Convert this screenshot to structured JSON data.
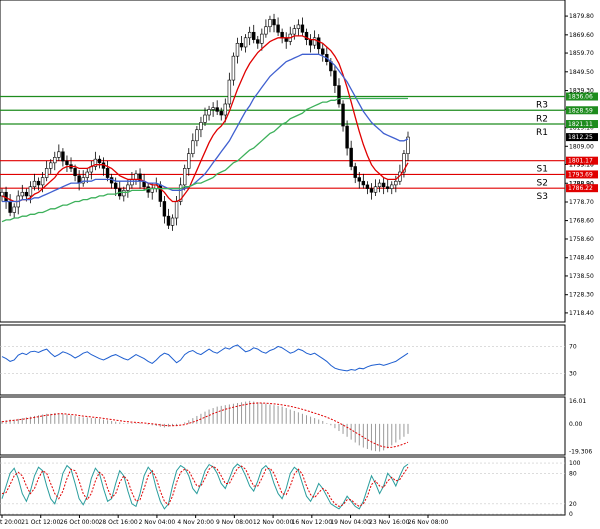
{
  "chart_data": [
    {
      "type": "candlestick",
      "panel": "price",
      "ylim": [
        1714.0,
        1888.0
      ],
      "y_ticks": [
        "1879.80",
        "1869.60",
        "1859.70",
        "1849.50",
        "1839.30",
        "1829.20",
        "1819.10",
        "1809.00",
        "1799.10",
        "1788.90",
        "1778.70",
        "1768.60",
        "1758.60",
        "1748.40",
        "1738.50",
        "1728.30",
        "1718.40"
      ],
      "x_ticks": [
        "20 Oct 20:00",
        "21 Oct 12:00",
        "26 Oct 00:00",
        "28 Oct 16:00",
        "2 Nov 04:00",
        "4 Nov 20:00",
        "9 Nov 08:00",
        "12 Nov 00:00",
        "16 Nov 12:00",
        "19 Nov 04:00",
        "23 Nov 16:00",
        "26 Nov 08:00"
      ],
      "close_series": [
        1784,
        1779,
        1773,
        1776,
        1782,
        1784,
        1782,
        1787,
        1790,
        1788,
        1792,
        1797,
        1800,
        1803,
        1806,
        1801,
        1799,
        1797,
        1793,
        1789,
        1792,
        1795,
        1798,
        1802,
        1800,
        1797,
        1792,
        1789,
        1786,
        1782,
        1785,
        1788,
        1791,
        1794,
        1790,
        1787,
        1784,
        1786,
        1788,
        1779,
        1771,
        1766,
        1770,
        1779,
        1788,
        1797,
        1805,
        1812,
        1818,
        1822,
        1826,
        1829,
        1830,
        1828,
        1826,
        1832,
        1845,
        1858,
        1865,
        1863,
        1868,
        1871,
        1867,
        1865,
        1870,
        1874,
        1878,
        1875,
        1871,
        1868,
        1866,
        1870,
        1873,
        1875,
        1871,
        1867,
        1864,
        1868,
        1862,
        1859,
        1855,
        1850,
        1842,
        1832,
        1820,
        1808,
        1798,
        1792,
        1790,
        1788,
        1786,
        1784,
        1787,
        1789,
        1787,
        1786,
        1788,
        1790,
        1795,
        1805,
        1814
      ],
      "series": [
        {
          "name": "",
          "color": "#e00000",
          "values": [
            1782,
            1781,
            1780,
            1779,
            1779,
            1780,
            1780,
            1781,
            1783,
            1784,
            1786,
            1788,
            1790,
            1792,
            1795,
            1797,
            1798,
            1798,
            1798,
            1797,
            1797,
            1797,
            1798,
            1799,
            1799,
            1799,
            1798,
            1797,
            1795,
            1793,
            1792,
            1791,
            1791,
            1791,
            1791,
            1790,
            1789,
            1788,
            1788,
            1786,
            1784,
            1781,
            1779,
            1779,
            1780,
            1783,
            1786,
            1791,
            1796,
            1801,
            1806,
            1811,
            1815,
            1818,
            1820,
            1823,
            1828,
            1834,
            1840,
            1845,
            1850,
            1854,
            1857,
            1860,
            1862,
            1864,
            1866,
            1867,
            1868,
            1868,
            1868,
            1868,
            1869,
            1869,
            1869,
            1868,
            1867,
            1867,
            1866,
            1865,
            1863,
            1861,
            1858,
            1854,
            1848,
            1841,
            1833,
            1825,
            1817,
            1810,
            1804,
            1799,
            1796,
            1794,
            1792,
            1791,
            1791,
            1791,
            1793,
            1796,
            1800
          ]
        },
        {
          "name": "",
          "color": "#4060d0",
          "values": [
            1779,
            1779,
            1779,
            1779,
            1779,
            1780,
            1780,
            1780,
            1781,
            1781,
            1782,
            1783,
            1784,
            1785,
            1786,
            1787,
            1788,
            1789,
            1789,
            1789,
            1790,
            1790,
            1790,
            1791,
            1791,
            1791,
            1791,
            1791,
            1790,
            1790,
            1790,
            1790,
            1790,
            1790,
            1790,
            1790,
            1789,
            1789,
            1789,
            1788,
            1787,
            1786,
            1785,
            1785,
            1785,
            1786,
            1787,
            1788,
            1790,
            1792,
            1794,
            1797,
            1800,
            1803,
            1806,
            1809,
            1812,
            1816,
            1820,
            1824,
            1828,
            1831,
            1835,
            1838,
            1841,
            1844,
            1847,
            1849,
            1851,
            1853,
            1855,
            1856,
            1857,
            1858,
            1859,
            1859,
            1859,
            1859,
            1859,
            1858,
            1857,
            1855,
            1853,
            1850,
            1847,
            1844,
            1840,
            1836,
            1832,
            1828,
            1825,
            1822,
            1820,
            1818,
            1816,
            1815,
            1814,
            1813,
            1812,
            1812,
            1813
          ]
        },
        {
          "name": "",
          "color": "#3cb05a",
          "values": [
            1768,
            1769,
            1769,
            1770,
            1770,
            1771,
            1771,
            1772,
            1772,
            1773,
            1773,
            1774,
            1775,
            1775,
            1776,
            1777,
            1777,
            1778,
            1779,
            1779,
            1780,
            1780,
            1781,
            1781,
            1782,
            1782,
            1783,
            1783,
            1783,
            1784,
            1784,
            1784,
            1785,
            1785,
            1785,
            1785,
            1786,
            1786,
            1786,
            1786,
            1786,
            1786,
            1786,
            1786,
            1786,
            1787,
            1787,
            1788,
            1789,
            1789,
            1790,
            1791,
            1792,
            1794,
            1795,
            1796,
            1798,
            1800,
            1801,
            1803,
            1805,
            1807,
            1808,
            1810,
            1812,
            1814,
            1816,
            1817,
            1819,
            1821,
            1822,
            1824,
            1825,
            1826,
            1827,
            1829,
            1830,
            1831,
            1832,
            1833,
            1833,
            1834,
            1834,
            1835,
            1835,
            1835,
            1835,
            1835,
            1835,
            1835,
            1835,
            1835,
            1835,
            1835,
            1835,
            1835,
            1835,
            1835,
            1835,
            1835,
            1835
          ]
        }
      ],
      "levels": [
        {
          "label": "R3",
          "value": 1836.06,
          "box": "1836.06",
          "color": "#1e8c1e"
        },
        {
          "label": "R2",
          "value": 1828.59,
          "box": "1828.59",
          "color": "#1e8c1e"
        },
        {
          "label": "R1",
          "value": 1821.11,
          "box": "1821.11",
          "color": "#1e8c1e"
        },
        {
          "label": "S1",
          "value": 1801.17,
          "box": "1801.17",
          "color": "#e00000"
        },
        {
          "label": "S2",
          "value": 1793.69,
          "box": "1793.69",
          "color": "#e00000"
        },
        {
          "label": "S3",
          "value": 1786.22,
          "box": "1786.22",
          "color": "#e00000"
        }
      ],
      "current_price_box": "1812.25",
      "extra_axis_labels": [
        "1799.10",
        "1788.90"
      ]
    },
    {
      "type": "line",
      "panel": "oscillator-1",
      "ylim": [
        0,
        100
      ],
      "y_ticks": [
        "70",
        "30"
      ],
      "series": [
        {
          "name": "",
          "color": "#1f5fd0",
          "values": [
            55,
            52,
            48,
            50,
            57,
            60,
            58,
            62,
            63,
            61,
            64,
            66,
            60,
            55,
            58,
            62,
            60,
            57,
            53,
            56,
            60,
            62,
            58,
            55,
            52,
            50,
            53,
            56,
            58,
            55,
            52,
            50,
            54,
            58,
            55,
            52,
            48,
            45,
            50,
            56,
            60,
            58,
            52,
            46,
            50,
            58,
            62,
            64,
            60,
            58,
            62,
            66,
            62,
            60,
            64,
            68,
            66,
            70,
            72,
            67,
            62,
            64,
            68,
            66,
            62,
            60,
            64,
            66,
            70,
            68,
            64,
            60,
            62,
            66,
            64,
            60,
            58,
            60,
            56,
            52,
            48,
            42,
            38,
            36,
            35,
            34,
            36,
            35,
            38,
            37,
            40,
            42,
            43,
            44,
            42,
            44,
            46,
            48,
            52,
            56,
            60
          ]
        }
      ]
    },
    {
      "type": "bar",
      "panel": "oscillator-2",
      "ylim": [
        -21.0,
        18.0
      ],
      "y_ticks": [
        "16.01",
        "0.00",
        "-19.306"
      ],
      "bar_values": [
        2.0,
        2.5,
        3.0,
        3.0,
        3.5,
        4.0,
        4.5,
        5.0,
        5.5,
        6.0,
        6.5,
        7.0,
        7.0,
        7.5,
        7.5,
        7.0,
        6.5,
        6.0,
        5.5,
        5.0,
        4.5,
        4.5,
        4.0,
        4.0,
        3.5,
        3.0,
        2.5,
        2.0,
        1.5,
        1.0,
        0.5,
        0.5,
        0.5,
        0.5,
        0.5,
        0.0,
        -0.5,
        -1.0,
        -1.5,
        -2.0,
        -2.5,
        -2.0,
        -1.5,
        -1.0,
        0.0,
        1.0,
        2.5,
        4.0,
        5.5,
        7.0,
        8.5,
        10.0,
        11.0,
        12.0,
        12.5,
        13.0,
        13.5,
        14.0,
        14.5,
        15.0,
        15.5,
        16.0,
        15.5,
        15.0,
        14.5,
        14.0,
        13.5,
        13.0,
        12.5,
        12.0,
        11.0,
        10.0,
        9.0,
        8.0,
        7.0,
        6.0,
        5.0,
        4.0,
        3.0,
        2.0,
        0.5,
        -1.0,
        -3.0,
        -5.0,
        -7.0,
        -9.0,
        -11.0,
        -13.0,
        -15.0,
        -16.5,
        -17.5,
        -18.5,
        -19.0,
        -19.3,
        -18.5,
        -17.0,
        -15.0,
        -13.0,
        -11.0,
        -9.0,
        -7.0
      ],
      "series": [
        {
          "name": "",
          "color": "#e00000",
          "values": [
            1.5,
            1.8,
            2.2,
            2.5,
            2.8,
            3.2,
            3.6,
            4.0,
            4.5,
            5.0,
            5.5,
            6.0,
            6.3,
            6.7,
            7.0,
            7.0,
            6.8,
            6.5,
            6.2,
            5.8,
            5.4,
            5.1,
            4.8,
            4.5,
            4.2,
            3.8,
            3.4,
            3.0,
            2.6,
            2.2,
            1.8,
            1.5,
            1.2,
            1.0,
            0.8,
            0.6,
            0.3,
            0.0,
            -0.3,
            -0.7,
            -1.1,
            -1.3,
            -1.3,
            -1.2,
            -0.9,
            -0.5,
            0.3,
            1.2,
            2.2,
            3.4,
            4.6,
            5.9,
            7.1,
            8.2,
            9.2,
            10.1,
            10.9,
            11.6,
            12.3,
            12.9,
            13.5,
            14.0,
            14.3,
            14.5,
            14.5,
            14.4,
            14.2,
            13.9,
            13.6,
            13.2,
            12.8,
            12.2,
            11.6,
            10.9,
            10.1,
            9.3,
            8.4,
            7.5,
            6.6,
            5.6,
            4.6,
            3.4,
            2.1,
            0.7,
            -0.8,
            -2.4,
            -4.1,
            -5.8,
            -7.5,
            -9.3,
            -11.0,
            -12.6,
            -14.0,
            -15.2,
            -16.0,
            -16.4,
            -16.3,
            -15.8,
            -15.0,
            -14.0,
            -12.8
          ]
        }
      ]
    },
    {
      "type": "line",
      "panel": "oscillator-3",
      "ylim": [
        0,
        110
      ],
      "y_ticks": [
        "100",
        "80",
        "20",
        "0"
      ],
      "series": [
        {
          "name": "",
          "color": "#2a9d9d",
          "values": [
            30,
            55,
            80,
            90,
            70,
            40,
            25,
            45,
            75,
            92,
            85,
            55,
            30,
            20,
            45,
            80,
            95,
            88,
            60,
            30,
            18,
            35,
            70,
            90,
            80,
            50,
            25,
            30,
            60,
            85,
            75,
            45,
            20,
            15,
            40,
            75,
            92,
            82,
            50,
            25,
            10,
            20,
            55,
            85,
            95,
            90,
            75,
            50,
            40,
            60,
            85,
            97,
            93,
            80,
            60,
            50,
            70,
            90,
            98,
            92,
            75,
            55,
            45,
            65,
            88,
            95,
            85,
            60,
            40,
            30,
            50,
            80,
            92,
            85,
            60,
            35,
            25,
            40,
            60,
            50,
            35,
            20,
            15,
            10,
            20,
            35,
            25,
            15,
            10,
            25,
            50,
            75,
            60,
            40,
            55,
            80,
            70,
            55,
            75,
            92,
            98
          ]
        },
        {
          "name": "",
          "color": "#e00000",
          "values": [
            40,
            42,
            58,
            75,
            82,
            75,
            55,
            40,
            50,
            70,
            85,
            80,
            60,
            40,
            30,
            45,
            70,
            88,
            85,
            65,
            40,
            28,
            40,
            65,
            82,
            75,
            50,
            32,
            40,
            62,
            75,
            65,
            42,
            25,
            28,
            50,
            75,
            85,
            70,
            45,
            25,
            18,
            35,
            62,
            82,
            88,
            85,
            70,
            55,
            55,
            70,
            88,
            94,
            88,
            75,
            60,
            60,
            75,
            90,
            94,
            88,
            70,
            55,
            55,
            70,
            88,
            90,
            80,
            60,
            40,
            38,
            55,
            78,
            88,
            78,
            55,
            38,
            32,
            42,
            50,
            45,
            30,
            20,
            15,
            18,
            28,
            28,
            20,
            15,
            20,
            35,
            58,
            65,
            55,
            52,
            65,
            72,
            65,
            68,
            80,
            92
          ]
        }
      ]
    }
  ]
}
